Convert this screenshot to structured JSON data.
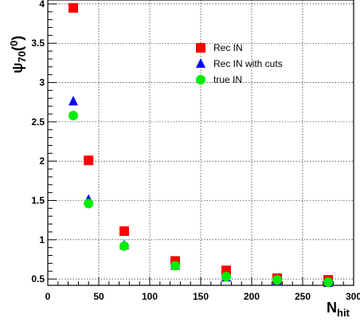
{
  "chart_data": {
    "type": "scatter",
    "title": "",
    "xlabel": "N",
    "xlabel_sub": "hit",
    "ylabel": "ψ",
    "ylabel_sub": "70",
    "ylabel_sup": "0",
    "xlim": [
      0,
      300
    ],
    "ylim": [
      0.42,
      4.05
    ],
    "xticks": [
      0,
      50,
      100,
      150,
      200,
      250,
      300
    ],
    "yticks": [
      0.5,
      1,
      1.5,
      2,
      2.5,
      3,
      3.5,
      4
    ],
    "grid": true,
    "legend_position": "upper-right",
    "series": [
      {
        "name": "Rec IN",
        "marker": "square",
        "color": "#ff0000",
        "x": [
          25,
          40,
          75,
          125,
          175,
          225,
          275
        ],
        "y": [
          3.95,
          2.01,
          1.11,
          0.73,
          0.61,
          0.51,
          0.49
        ]
      },
      {
        "name": "Rec IN with cuts",
        "marker": "triangle",
        "color": "#0000ff",
        "x": [
          25,
          40,
          75,
          125,
          175,
          225,
          275
        ],
        "y": [
          2.76,
          1.51,
          0.93,
          0.67,
          0.52,
          0.48,
          0.45
        ]
      },
      {
        "name": "true IN",
        "marker": "circle",
        "color": "#00ee00",
        "x": [
          25,
          40,
          75,
          125,
          175,
          225,
          275
        ],
        "y": [
          2.58,
          1.46,
          0.92,
          0.67,
          0.53,
          0.49,
          0.46
        ]
      }
    ]
  }
}
